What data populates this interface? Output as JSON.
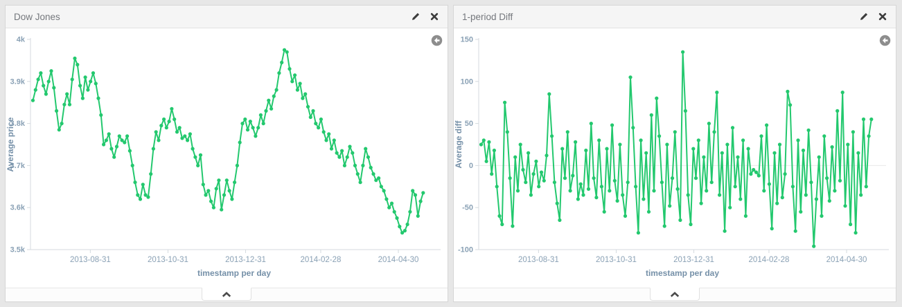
{
  "page": {
    "background": "#e7e7e7"
  },
  "colors": {
    "series_green": "#23c86e",
    "axis_line": "#d4dadf",
    "tick_text": "#8aa1b5",
    "axis_title_text": "#7590a8",
    "zero_line": "#e8e8e8",
    "header_icon": "#3c3c3c",
    "zoom_out_circle": "#8d8d8d"
  },
  "icons": {
    "edit": "pencil-icon",
    "close": "close-x-icon",
    "zoom_out": "circle-arrow-left-icon",
    "collapse": "chevron-up-icon"
  },
  "panels": [
    {
      "title": "Dow Jones",
      "chart_data": {
        "type": "line",
        "series_name": "Average price",
        "xlabel": "timestamp per day",
        "ylabel": "Average price",
        "x_start": "2013-07-15",
        "x_end": "2014-05-31",
        "x_ticks": [
          "2013-08-31",
          "2013-10-31",
          "2013-12-31",
          "2014-02-28",
          "2014-04-30"
        ],
        "ylim": [
          3500,
          4000
        ],
        "y_ticks": [
          {
            "value": 4000,
            "label": "4k"
          },
          {
            "value": 3900,
            "label": "3.9k"
          },
          {
            "value": 3800,
            "label": "3.8k"
          },
          {
            "value": 3700,
            "label": "3.7k"
          },
          {
            "value": 3600,
            "label": "3.6k"
          },
          {
            "value": 3500,
            "label": "3.5k"
          }
        ],
        "zero_gridline": false,
        "values": [
          3855,
          3880,
          3905,
          3920,
          3890,
          3870,
          3900,
          3925,
          3885,
          3830,
          3785,
          3800,
          3845,
          3870,
          3845,
          3905,
          3955,
          3940,
          3890,
          3860,
          3910,
          3880,
          3900,
          3920,
          3895,
          3860,
          3820,
          3750,
          3760,
          3775,
          3740,
          3720,
          3745,
          3770,
          3760,
          3755,
          3770,
          3735,
          3700,
          3660,
          3630,
          3620,
          3655,
          3630,
          3625,
          3680,
          3740,
          3780,
          3760,
          3795,
          3810,
          3790,
          3805,
          3835,
          3810,
          3780,
          3790,
          3765,
          3770,
          3760,
          3775,
          3740,
          3720,
          3700,
          3725,
          3655,
          3630,
          3640,
          3615,
          3600,
          3645,
          3665,
          3595,
          3630,
          3665,
          3640,
          3620,
          3660,
          3700,
          3755,
          3800,
          3810,
          3785,
          3805,
          3790,
          3770,
          3790,
          3820,
          3800,
          3830,
          3855,
          3835,
          3865,
          3880,
          3920,
          3945,
          3975,
          3970,
          3930,
          3900,
          3915,
          3880,
          3895,
          3860,
          3870,
          3840,
          3815,
          3830,
          3800,
          3790,
          3810,
          3780,
          3760,
          3775,
          3740,
          3760,
          3730,
          3720,
          3735,
          3700,
          3720,
          3745,
          3730,
          3700,
          3680,
          3660,
          3700,
          3740,
          3720,
          3695,
          3680,
          3665,
          3670,
          3650,
          3640,
          3620,
          3600,
          3610,
          3590,
          3575,
          3555,
          3540,
          3545,
          3560,
          3590,
          3640,
          3630,
          3580,
          3615,
          3635
        ]
      }
    },
    {
      "title": "1-period Diff",
      "chart_data": {
        "type": "line",
        "series_name": "Average diff",
        "xlabel": "timestamp per day",
        "ylabel": "Average diff",
        "x_start": "2013-07-15",
        "x_end": "2014-05-31",
        "x_ticks": [
          "2013-08-31",
          "2013-10-31",
          "2013-12-31",
          "2014-02-28",
          "2014-04-30"
        ],
        "ylim": [
          -100,
          150
        ],
        "y_ticks": [
          {
            "value": 150,
            "label": "150"
          },
          {
            "value": 100,
            "label": "100"
          },
          {
            "value": 50,
            "label": "50"
          },
          {
            "value": 0,
            "label": "0"
          },
          {
            "value": -50,
            "label": "-50"
          },
          {
            "value": -100,
            "label": "-100"
          }
        ],
        "zero_gridline": true,
        "values": [
          25,
          30,
          5,
          28,
          -10,
          18,
          -25,
          -60,
          -70,
          75,
          40,
          -15,
          -72,
          10,
          -30,
          25,
          -5,
          -20,
          15,
          -35,
          -10,
          5,
          -25,
          -8,
          -18,
          12,
          85,
          35,
          -20,
          -45,
          -65,
          20,
          -15,
          40,
          -30,
          -12,
          28,
          -40,
          -22,
          -35,
          18,
          -28,
          50,
          -15,
          -38,
          30,
          -25,
          -55,
          20,
          -30,
          48,
          -18,
          -42,
          25,
          -35,
          -60,
          -20,
          105,
          45,
          -25,
          -80,
          30,
          -40,
          15,
          -55,
          60,
          -30,
          80,
          35,
          -20,
          -72,
          25,
          -48,
          -15,
          40,
          -28,
          -65,
          135,
          65,
          -35,
          -70,
          20,
          -15,
          30,
          -45,
          10,
          -30,
          50,
          -20,
          40,
          87,
          -35,
          15,
          -78,
          25,
          -50,
          45,
          -25,
          10,
          -40,
          30,
          -60,
          20,
          -10,
          -5,
          -8,
          -12,
          35,
          -30,
          48,
          -22,
          -75,
          15,
          -45,
          25,
          -38,
          -10,
          88,
          72,
          -25,
          -78,
          30,
          -55,
          18,
          -35,
          42,
          -20,
          -96,
          -40,
          10,
          -60,
          35,
          -15,
          -42,
          22,
          -30,
          65,
          -18,
          87,
          -48,
          25,
          -70,
          40,
          -80,
          15,
          -35,
          55,
          -25,
          35,
          55
        ]
      }
    }
  ]
}
